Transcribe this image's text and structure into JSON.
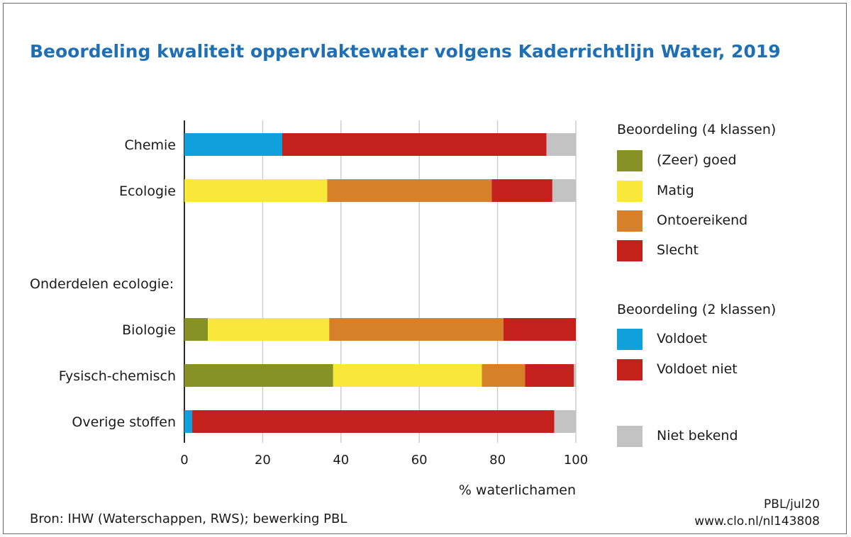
{
  "header": {
    "title": "Beoordeling kwaliteit oppervlaktewater volgens Kaderrichtlijn Water, 2019"
  },
  "footer": {
    "source": "Bron: IHW (Waterschappen, RWS); bewerking PBL",
    "credit": "PBL/jul20",
    "url": "www.clo.nl/nl143808"
  },
  "legend": {
    "heading_4": "Beoordeling (4 klassen)",
    "items_4": [
      {
        "label": "(Zeer) goed",
        "color": "#879125"
      },
      {
        "label": "Matig",
        "color": "#f7e839"
      },
      {
        "label": "Ontoereikend",
        "color": "#d6812a"
      },
      {
        "label": "Slecht",
        "color": "#c4211c"
      }
    ],
    "heading_2": "Beoordeling (2 klassen)",
    "items_2": [
      {
        "label": "Voldoet",
        "color": "#10a0dc"
      },
      {
        "label": "Voldoet niet",
        "color": "#c4211c"
      }
    ],
    "unknown": {
      "label": "Niet bekend",
      "color": "#c3c3c3"
    }
  },
  "chart_data": {
    "type": "bar",
    "orientation": "horizontal",
    "stacked": true,
    "group_label": "Onderdelen ecologie:",
    "xlabel": "% waterlichamen",
    "xlim": [
      0,
      100
    ],
    "xticks": [
      0,
      20,
      40,
      60,
      80,
      100
    ],
    "grid": true,
    "legend_position": "right",
    "categories": [
      {
        "label": "Chemie",
        "segments": [
          {
            "class": "Voldoet",
            "color": "#10a0dc",
            "value": 25
          },
          {
            "class": "Voldoet niet",
            "color": "#c4211c",
            "value": 67.5
          },
          {
            "class": "Niet bekend",
            "color": "#c3c3c3",
            "value": 7.5
          }
        ]
      },
      {
        "label": "Ecologie",
        "segments": [
          {
            "class": "Matig",
            "color": "#f7e839",
            "value": 36.5
          },
          {
            "class": "Ontoereikend",
            "color": "#d6812a",
            "value": 42
          },
          {
            "class": "Slecht",
            "color": "#c4211c",
            "value": 15.5
          },
          {
            "class": "Niet bekend",
            "color": "#c3c3c3",
            "value": 6
          }
        ]
      },
      {
        "label": "Biologie",
        "segments": [
          {
            "class": "(Zeer) goed",
            "color": "#879125",
            "value": 6
          },
          {
            "class": "Matig",
            "color": "#f7e839",
            "value": 31
          },
          {
            "class": "Ontoereikend",
            "color": "#d6812a",
            "value": 44.5
          },
          {
            "class": "Slecht",
            "color": "#c4211c",
            "value": 18.5
          }
        ]
      },
      {
        "label": "Fysisch-chemisch",
        "segments": [
          {
            "class": "(Zeer) goed",
            "color": "#879125",
            "value": 38
          },
          {
            "class": "Matig",
            "color": "#f7e839",
            "value": 38
          },
          {
            "class": "Ontoereikend",
            "color": "#d6812a",
            "value": 11
          },
          {
            "class": "Slecht",
            "color": "#c4211c",
            "value": 12.5
          },
          {
            "class": "Niet bekend",
            "color": "#c3c3c3",
            "value": 0.5
          }
        ]
      },
      {
        "label": "Overige stoffen",
        "segments": [
          {
            "class": "Voldoet",
            "color": "#10a0dc",
            "value": 2
          },
          {
            "class": "Voldoet niet",
            "color": "#c4211c",
            "value": 92.5
          },
          {
            "class": "Niet bekend",
            "color": "#c3c3c3",
            "value": 5.5
          }
        ]
      }
    ]
  }
}
